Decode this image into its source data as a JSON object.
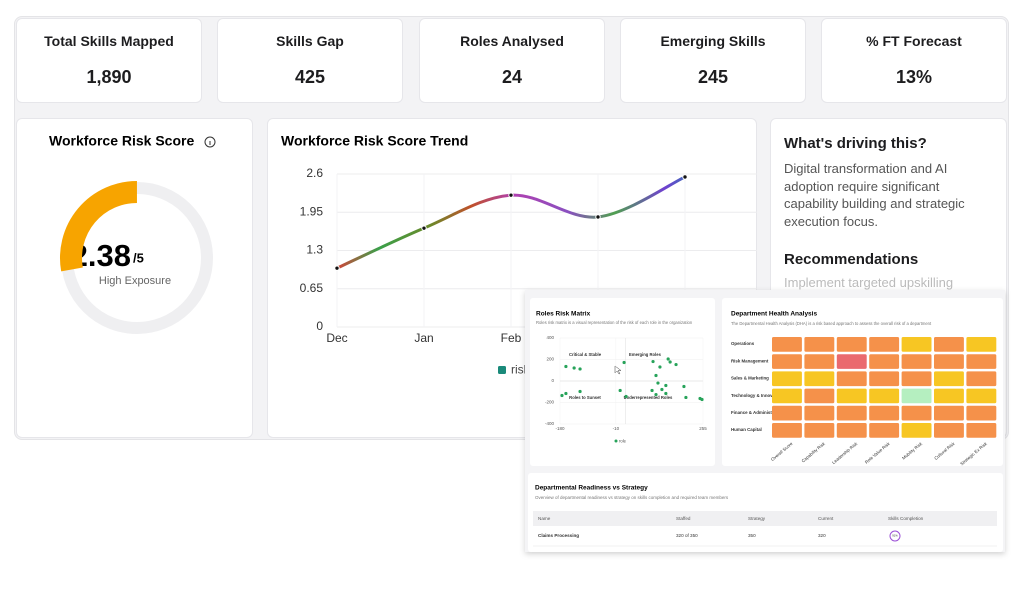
{
  "kpis": [
    {
      "label": "Total Skills Mapped",
      "value": "1,890"
    },
    {
      "label": "Skills Gap",
      "value": "425"
    },
    {
      "label": "Roles Analysed",
      "value": "24"
    },
    {
      "label": "Emerging Skills",
      "value": "245"
    },
    {
      "label": "% FT Forecast",
      "value": "13%"
    }
  ],
  "gauge": {
    "title": "Workforce Risk Score",
    "value": 2.38,
    "max": 5,
    "max_label": "/5",
    "status": "High Exposure",
    "color": "#f7a400"
  },
  "insights": {
    "title": "What's driving this?",
    "body": "Digital transformation and AI adoption require significant capability building and strategic execution focus.",
    "recommendations_title": "Recommendations",
    "recommendation": "Implement targeted upskilling"
  },
  "chart_data": [
    {
      "type": "line",
      "title": "Workforce Risk Score Trend",
      "categories": [
        "Dec",
        "Jan",
        "Feb",
        null,
        null
      ],
      "series": [
        {
          "name": "risk",
          "color": "#1a8a7a",
          "values": [
            1.0,
            1.68,
            2.24,
            1.87,
            2.55
          ]
        }
      ],
      "ylim": [
        0,
        2.6
      ],
      "yticks": [
        0,
        0.65,
        1.3,
        1.95,
        2.6
      ],
      "grid": true
    },
    {
      "type": "scatter",
      "title": "Roles Risk Matrix",
      "subtitle": "Roles risk matrix is a visual representation of the risk of each role in the organization",
      "quadrants": [
        "Critical & Stable",
        "Emerging Roles",
        "Roles to Sunset",
        "Underrepresented Roles"
      ],
      "series": [
        {
          "name": "role",
          "color": "#27a35a",
          "x": [
            -162,
            -137,
            -119,
            15,
            103,
            149,
            155,
            173,
            124,
            112,
            118,
            142,
            197,
            130,
            100,
            3,
            21,
            112,
            142,
            203,
            246,
            252,
            -162,
            -119,
            -174
          ],
          "y": [
            135,
            121,
            112,
            172,
            181,
            205,
            177,
            153,
            130,
            51,
            -19,
            -42,
            -51,
            -79,
            -88,
            -88,
            -144,
            -126,
            -116,
            -153,
            -163,
            -172,
            -116,
            -98,
            -135
          ]
        }
      ],
      "xlim": [
        -180,
        255
      ],
      "xticks": [
        -180,
        -10,
        255
      ],
      "ylim": [
        -400,
        400
      ],
      "yticks": [
        400,
        200,
        0,
        -200,
        -400
      ],
      "grid": true
    }
  ],
  "department_health": {
    "title": "Department Health Analysis",
    "subtitle": "The Departmental Health Analysis (DHA) is a risk based approach to assess the overall risk of a department",
    "rows": [
      "Operations",
      "Risk Management",
      "Sales & Marketing",
      "Technology & Innovation",
      "Finance & Administration",
      "Human Capital"
    ],
    "columns": [
      "Overall Score",
      "Capability Risk",
      "Leadership Risk",
      "Role Value Risk",
      "Mobility Risk",
      "Cultural Risk",
      "Strategic Ex Risk"
    ],
    "cell_colors": [
      [
        "#f5914a",
        "#f5914a",
        "#f5914a",
        "#f5914a",
        "#f7c623",
        "#f5914a",
        "#f7c623"
      ],
      [
        "#f5914a",
        "#f5914a",
        "#ea6a6f",
        "#f5914a",
        "#f5914a",
        "#f5914a",
        "#f5914a"
      ],
      [
        "#f7c623",
        "#f7c623",
        "#f5914a",
        "#f5914a",
        "#f5914a",
        "#f7c623",
        "#f5914a"
      ],
      [
        "#f7c623",
        "#f5914a",
        "#f7c623",
        "#f7c623",
        "#b5efc0",
        "#f7c623",
        "#f7c623"
      ],
      [
        "#f5914a",
        "#f5914a",
        "#f5914a",
        "#f5914a",
        "#f5914a",
        "#f5914a",
        "#f5914a"
      ],
      [
        "#f5914a",
        "#f5914a",
        "#f5914a",
        "#f5914a",
        "#f7c623",
        "#f5914a",
        "#f5914a"
      ]
    ]
  },
  "readiness": {
    "title": "Departmental Readiness vs Strategy",
    "subtitle": "Overview of departmental readiness vs strategy on skills completion and required team members",
    "columns": [
      "Name",
      "Staffed",
      "Strategy",
      "Current",
      "Skills Completion"
    ],
    "rows": [
      [
        "Claims Processing",
        "320 of 350",
        "350",
        "320",
        "91%"
      ]
    ]
  }
}
